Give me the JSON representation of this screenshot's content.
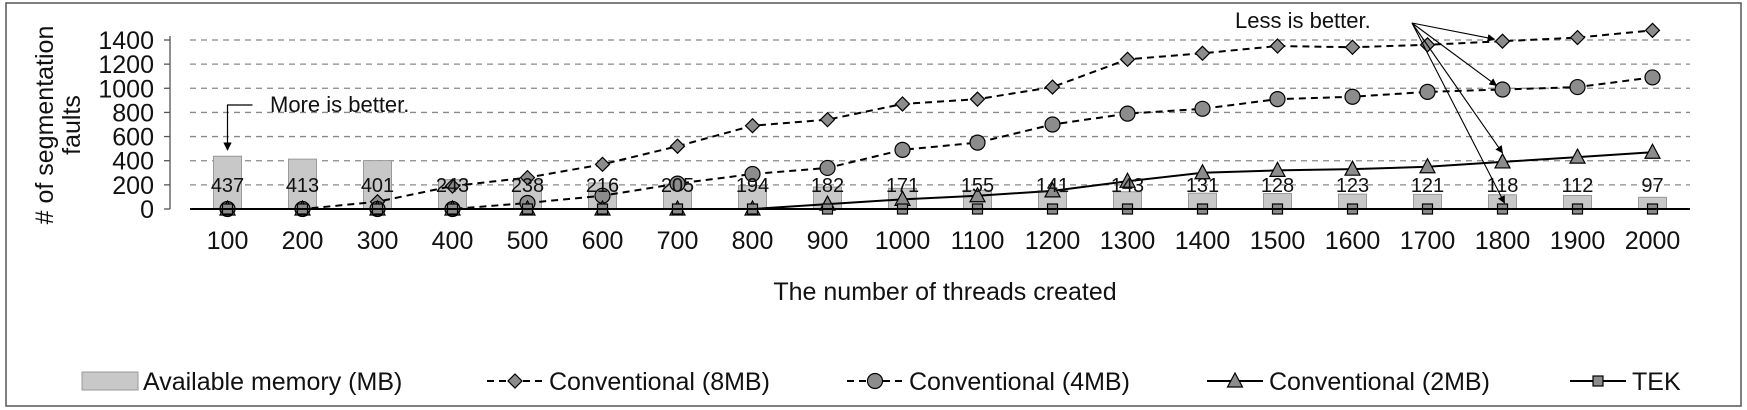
{
  "chart_data": {
    "type": "bar+line",
    "xlabel": "The number of threads created",
    "ylabel_lines": [
      "# of segmentation",
      "faults"
    ],
    "ylim": [
      0,
      1400
    ],
    "yticks": [
      0,
      200,
      400,
      600,
      800,
      1000,
      1200,
      1400
    ],
    "grid": "horizontal dashed",
    "legend_position": "bottom",
    "categories": [
      "100",
      "200",
      "300",
      "400",
      "500",
      "600",
      "700",
      "800",
      "900",
      "1000",
      "1100",
      "1200",
      "1300",
      "1400",
      "1500",
      "1600",
      "1700",
      "1800",
      "1900",
      "2000"
    ],
    "bars": {
      "name": "Available memory (MB)",
      "values": [
        437,
        413,
        401,
        243,
        238,
        216,
        205,
        194,
        182,
        171,
        155,
        141,
        143,
        131,
        128,
        123,
        121,
        118,
        112,
        97
      ],
      "labels": [
        "437",
        "413",
        "401",
        "243",
        "238",
        "216",
        "205",
        "194",
        "182",
        "171",
        "155",
        "141",
        "143",
        "131",
        "128",
        "123",
        "121",
        "118",
        "112",
        "97"
      ],
      "color": "#c8c8c8"
    },
    "series": [
      {
        "name": "Conventional (8MB)",
        "marker": "diamond",
        "dash": true,
        "values": [
          0,
          0,
          60,
          190,
          260,
          370,
          520,
          690,
          740,
          870,
          910,
          1010,
          1240,
          1290,
          1350,
          1340,
          1360,
          1390,
          1420,
          1480
        ]
      },
      {
        "name": "Conventional (4MB)",
        "marker": "circle",
        "dash": true,
        "values": [
          0,
          0,
          0,
          0,
          50,
          110,
          210,
          290,
          340,
          490,
          550,
          700,
          790,
          830,
          910,
          930,
          970,
          990,
          1010,
          1090
        ]
      },
      {
        "name": "Conventional (2MB)",
        "marker": "triangle",
        "dash": false,
        "values": [
          0,
          0,
          0,
          0,
          0,
          0,
          0,
          0,
          40,
          80,
          110,
          150,
          230,
          300,
          320,
          330,
          350,
          390,
          430,
          470
        ]
      },
      {
        "name": "TEK",
        "marker": "square",
        "dash": false,
        "values": [
          0,
          0,
          0,
          0,
          0,
          0,
          0,
          0,
          0,
          0,
          0,
          0,
          0,
          0,
          0,
          0,
          0,
          0,
          0,
          0
        ]
      }
    ],
    "annotations": [
      {
        "text": "More is better.",
        "points_to": "bars"
      },
      {
        "text": "Less is better.",
        "points_to": "lines"
      }
    ]
  }
}
